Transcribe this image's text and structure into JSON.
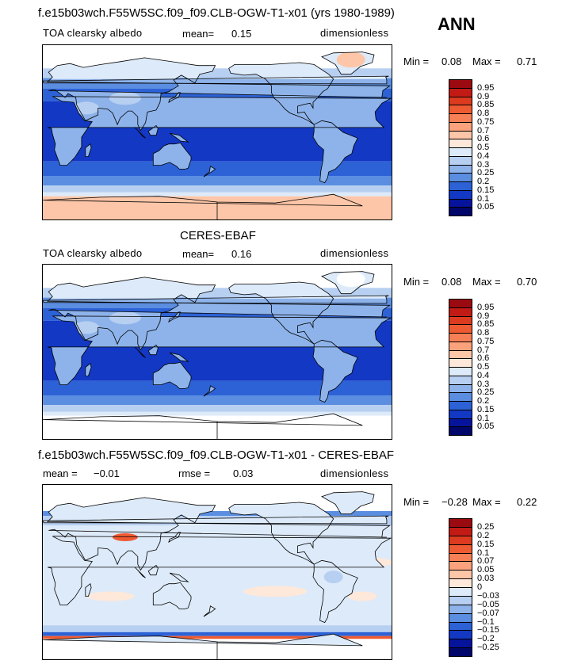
{
  "season": "ANN",
  "panels": [
    {
      "id": "model",
      "title": "f.e15b03wch.F55W5SC.f09_f09.CLB-OGW-T1-x01 (yrs 1980-1989)",
      "variable": "TOA clearsky albedo",
      "stat1_label": "mean=",
      "stat1_value": "0.15",
      "stat2_label": "",
      "stat2_value": "",
      "units": "dimensionless",
      "min_label": "Min =",
      "min_value": "0.08",
      "max_label": "Max =",
      "max_value": "0.71",
      "colorbar": {
        "labels": [
          "0.95",
          "0.9",
          "0.85",
          "0.8",
          "0.75",
          "0.7",
          "0.6",
          "0.5",
          "0.4",
          "0.3",
          "0.25",
          "0.2",
          "0.15",
          "0.1",
          "0.05"
        ],
        "colors": [
          "#9b0a10",
          "#c21b16",
          "#dc3b1f",
          "#ee5b33",
          "#f77f55",
          "#fba27d",
          "#fec6a8",
          "#fee8da",
          "#ddeaf9",
          "#b7cff1",
          "#8eb3ea",
          "#5b8ee0",
          "#2d62d6",
          "#1238c4",
          "#05149a",
          "#00066a"
        ]
      }
    },
    {
      "id": "obs",
      "title": "CERES-EBAF",
      "variable": "TOA clearsky albedo",
      "stat1_label": "mean=",
      "stat1_value": "0.16",
      "stat2_label": "",
      "stat2_value": "",
      "units": "dimensionless",
      "min_label": "Min =",
      "min_value": "0.08",
      "max_label": "Max =",
      "max_value": "0.70",
      "colorbar": {
        "labels": [
          "0.95",
          "0.9",
          "0.85",
          "0.8",
          "0.75",
          "0.7",
          "0.6",
          "0.5",
          "0.4",
          "0.3",
          "0.25",
          "0.2",
          "0.15",
          "0.1",
          "0.05"
        ],
        "colors": [
          "#9b0a10",
          "#c21b16",
          "#dc3b1f",
          "#ee5b33",
          "#f77f55",
          "#fba27d",
          "#fec6a8",
          "#fee8da",
          "#ddeaf9",
          "#b7cff1",
          "#8eb3ea",
          "#5b8ee0",
          "#2d62d6",
          "#1238c4",
          "#05149a",
          "#00066a"
        ]
      }
    },
    {
      "id": "diff",
      "title": "f.e15b03wch.F55W5SC.f09_f09.CLB-OGW-T1-x01 - CERES-EBAF",
      "variable": "",
      "stat1_label": "mean =",
      "stat1_value": "−0.01",
      "stat2_label": "rmse =",
      "stat2_value": "0.03",
      "units": "dimensionless",
      "min_label": "Min =",
      "min_value": "−0.28",
      "max_label": "Max =",
      "max_value": "0.22",
      "colorbar": {
        "labels": [
          "0.25",
          "0.2",
          "0.15",
          "0.1",
          "0.07",
          "0.05",
          "0.03",
          "0",
          "−0.03",
          "−0.05",
          "−0.07",
          "−0.1",
          "−0.15",
          "−0.2",
          "−0.25"
        ],
        "colors": [
          "#9b0a10",
          "#c21b16",
          "#dc3b1f",
          "#ee5b33",
          "#f77f55",
          "#fba27d",
          "#fec6a8",
          "#fee8da",
          "#ddeaf9",
          "#b7cff1",
          "#8eb3ea",
          "#5b8ee0",
          "#2d62d6",
          "#1238c4",
          "#05149a",
          "#00066a"
        ]
      }
    }
  ]
}
